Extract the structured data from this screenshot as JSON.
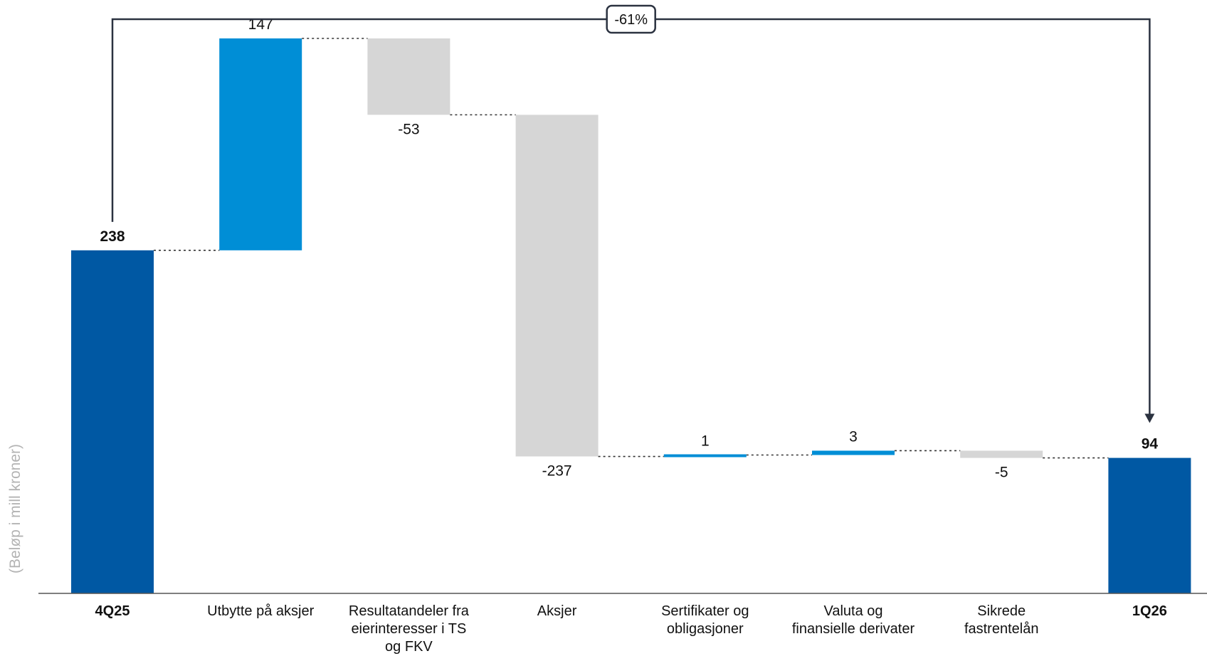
{
  "chart_data": {
    "type": "waterfall",
    "ylabel": "(Beløp i mill kroner)",
    "categories": [
      [
        "4Q25"
      ],
      [
        "Utbytte på aksjer"
      ],
      [
        "Resultatandeler fra",
        "eierinteresser i TS",
        "og FKV"
      ],
      [
        "Aksjer"
      ],
      [
        "Sertifikater og",
        "obligasjoner"
      ],
      [
        "Valuta og",
        "finansielle derivater"
      ],
      [
        "Sikrede",
        "fastrentelån"
      ],
      [
        "1Q26"
      ]
    ],
    "kinds": [
      "total",
      "delta",
      "delta",
      "delta",
      "delta",
      "delta",
      "delta",
      "total"
    ],
    "values": [
      238,
      147,
      -53,
      -237,
      1,
      3,
      -5,
      94
    ],
    "value_labels": [
      "238",
      "147",
      "-53",
      "-237",
      "1",
      "3",
      "-5",
      "94"
    ],
    "change_label": "-61%",
    "ylim": [
      0,
      385
    ],
    "colors": {
      "total": "#0058a3",
      "increase": "#008ed6",
      "decrease": "#d6d6d6",
      "connector": "#333333",
      "bracket": "#2b3240",
      "axis": "#555555"
    }
  }
}
